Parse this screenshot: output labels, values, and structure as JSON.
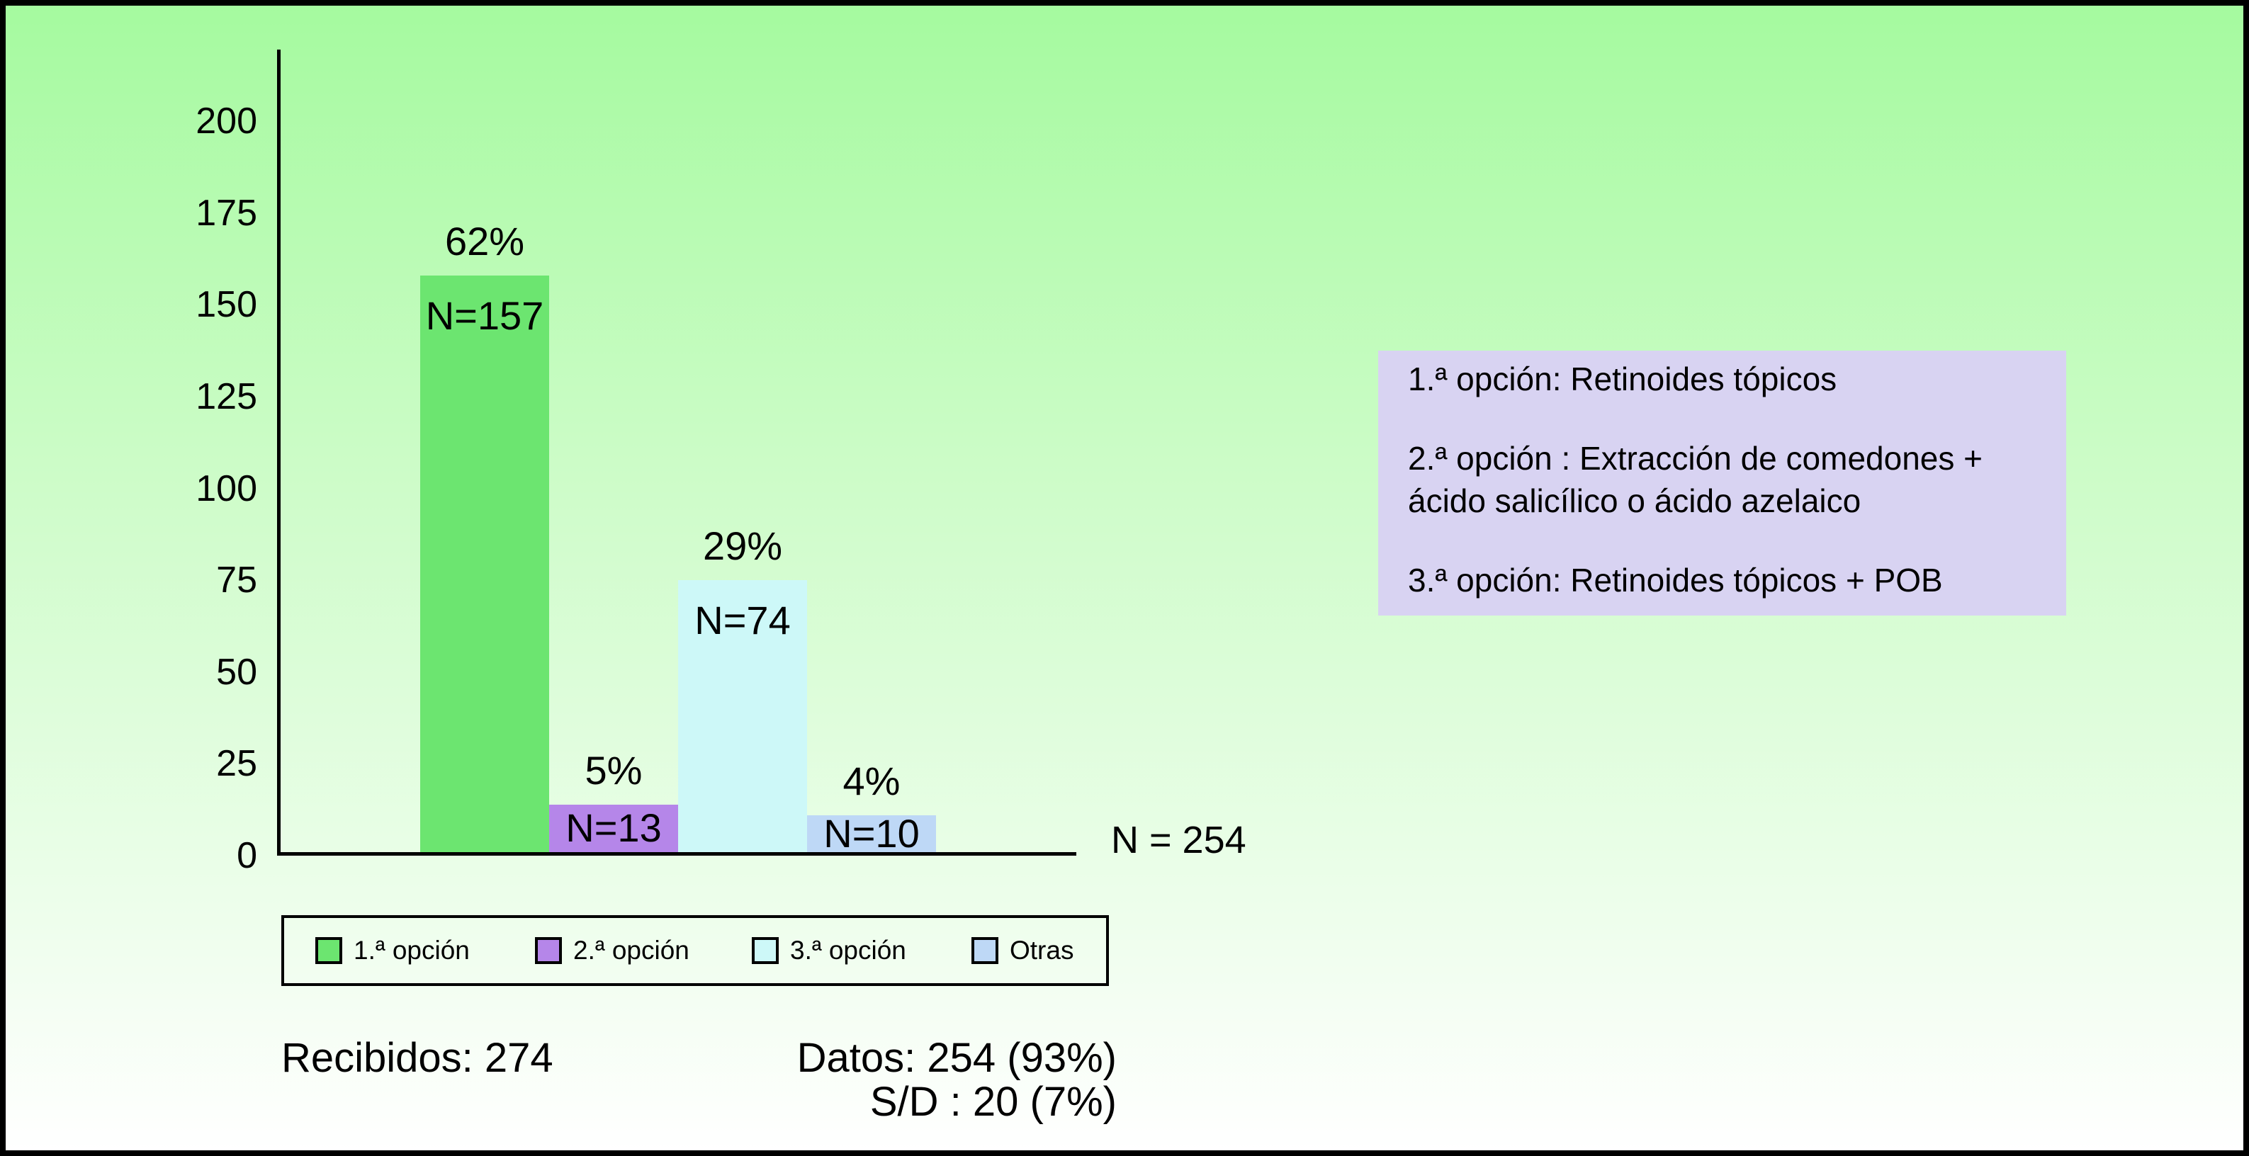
{
  "chart_data": {
    "type": "bar",
    "title": "",
    "xlabel": "",
    "ylabel": "",
    "categories": [
      "1.ª opción",
      "2.ª opción",
      "3.ª opción",
      "Otras"
    ],
    "values": [
      157,
      13,
      74,
      10
    ],
    "bar_value_labels": [
      "N=157",
      "N=13",
      "N=74",
      "N=10"
    ],
    "percent_labels": [
      "62%",
      "5%",
      "29%",
      "4%"
    ],
    "bar_colors": [
      "#6ce570",
      "#b586e9",
      "#cdf8f8",
      "#bed8f6"
    ],
    "ylim": [
      0,
      200
    ],
    "yticks": [
      0,
      25,
      50,
      75,
      100,
      125,
      150,
      175,
      200
    ],
    "grid": false,
    "legend_position": "bottom",
    "total_label": "N = 254"
  },
  "info_box": {
    "background": "#d8d3f2",
    "paragraphs": [
      "1.ª opción: Retinoides tópicos",
      "2.ª opción : Extracción de comedones + ácido salicílico o ácido azelaico",
      "3.ª opción: Retinoides tópicos + POB"
    ]
  },
  "footnotes": {
    "left": "Recibidos: 274",
    "right_lines": [
      "Datos: 254 (93%)",
      "S/D : 20 (7%)"
    ]
  },
  "colors": {
    "background_top": "#a5fa9f",
    "background_bottom": "#ffffff",
    "axis": "#000000",
    "text": "#000000"
  }
}
